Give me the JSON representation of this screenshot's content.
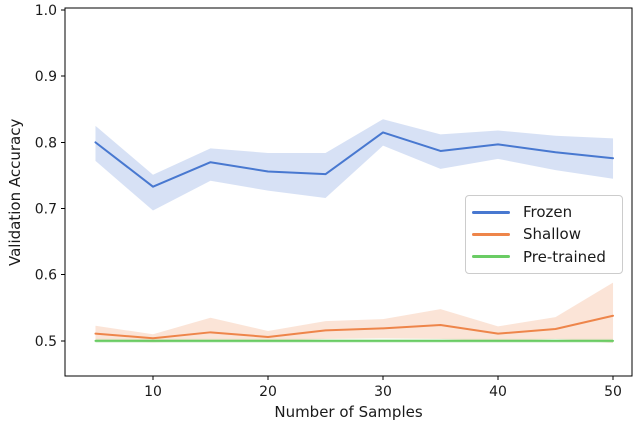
{
  "figure": {
    "background_color": "#ffffff",
    "axis_color": "#000000",
    "text_color": "#1a1a1a"
  },
  "chart_data": {
    "type": "line",
    "title": "",
    "xlabel": "Number of Samples",
    "ylabel": "Validation Accuracy",
    "grid": false,
    "legend_position": "center-right",
    "legend_border_color": "#cccccc",
    "x": [
      5,
      10,
      15,
      20,
      25,
      30,
      35,
      40,
      45,
      50
    ],
    "xlim": [
      2.35,
      51.65
    ],
    "ylim": [
      0.447,
      1.003
    ],
    "xticks": {
      "values": [
        10,
        20,
        30,
        40,
        50
      ],
      "labels": [
        "10",
        "20",
        "30",
        "40",
        "50"
      ]
    },
    "yticks": {
      "values": [
        0.5,
        0.6,
        0.7,
        0.8,
        0.9,
        1.0
      ],
      "labels": [
        "0.5",
        "0.6",
        "0.7",
        "0.8",
        "0.9",
        "1.0"
      ]
    },
    "band_opacity": 0.22,
    "series": [
      {
        "name": "Frozen",
        "color": "#4878d0",
        "values": [
          0.8,
          0.733,
          0.77,
          0.756,
          0.752,
          0.815,
          0.787,
          0.797,
          0.785,
          0.776
        ],
        "band_lower": [
          0.772,
          0.697,
          0.742,
          0.727,
          0.716,
          0.795,
          0.76,
          0.775,
          0.758,
          0.745
        ],
        "band_upper": [
          0.825,
          0.751,
          0.791,
          0.784,
          0.784,
          0.835,
          0.812,
          0.818,
          0.81,
          0.806
        ]
      },
      {
        "name": "Shallow",
        "color": "#ee854a",
        "values": [
          0.511,
          0.504,
          0.513,
          0.506,
          0.516,
          0.519,
          0.524,
          0.511,
          0.518,
          0.538
        ],
        "band_lower": [
          0.5,
          0.498,
          0.5,
          0.499,
          0.503,
          0.504,
          0.503,
          0.499,
          0.503,
          0.497
        ],
        "band_upper": [
          0.523,
          0.51,
          0.535,
          0.515,
          0.53,
          0.533,
          0.548,
          0.522,
          0.536,
          0.588
        ]
      },
      {
        "name": "Pre-trained",
        "color": "#6acc64",
        "values": [
          0.5,
          0.5,
          0.5,
          0.5,
          0.5,
          0.5,
          0.5,
          0.5,
          0.5,
          0.5
        ],
        "band_lower": [
          0.497,
          0.497,
          0.497,
          0.497,
          0.497,
          0.497,
          0.497,
          0.497,
          0.497,
          0.497
        ],
        "band_upper": [
          0.503,
          0.503,
          0.503,
          0.503,
          0.503,
          0.503,
          0.503,
          0.503,
          0.503,
          0.503
        ]
      }
    ]
  }
}
